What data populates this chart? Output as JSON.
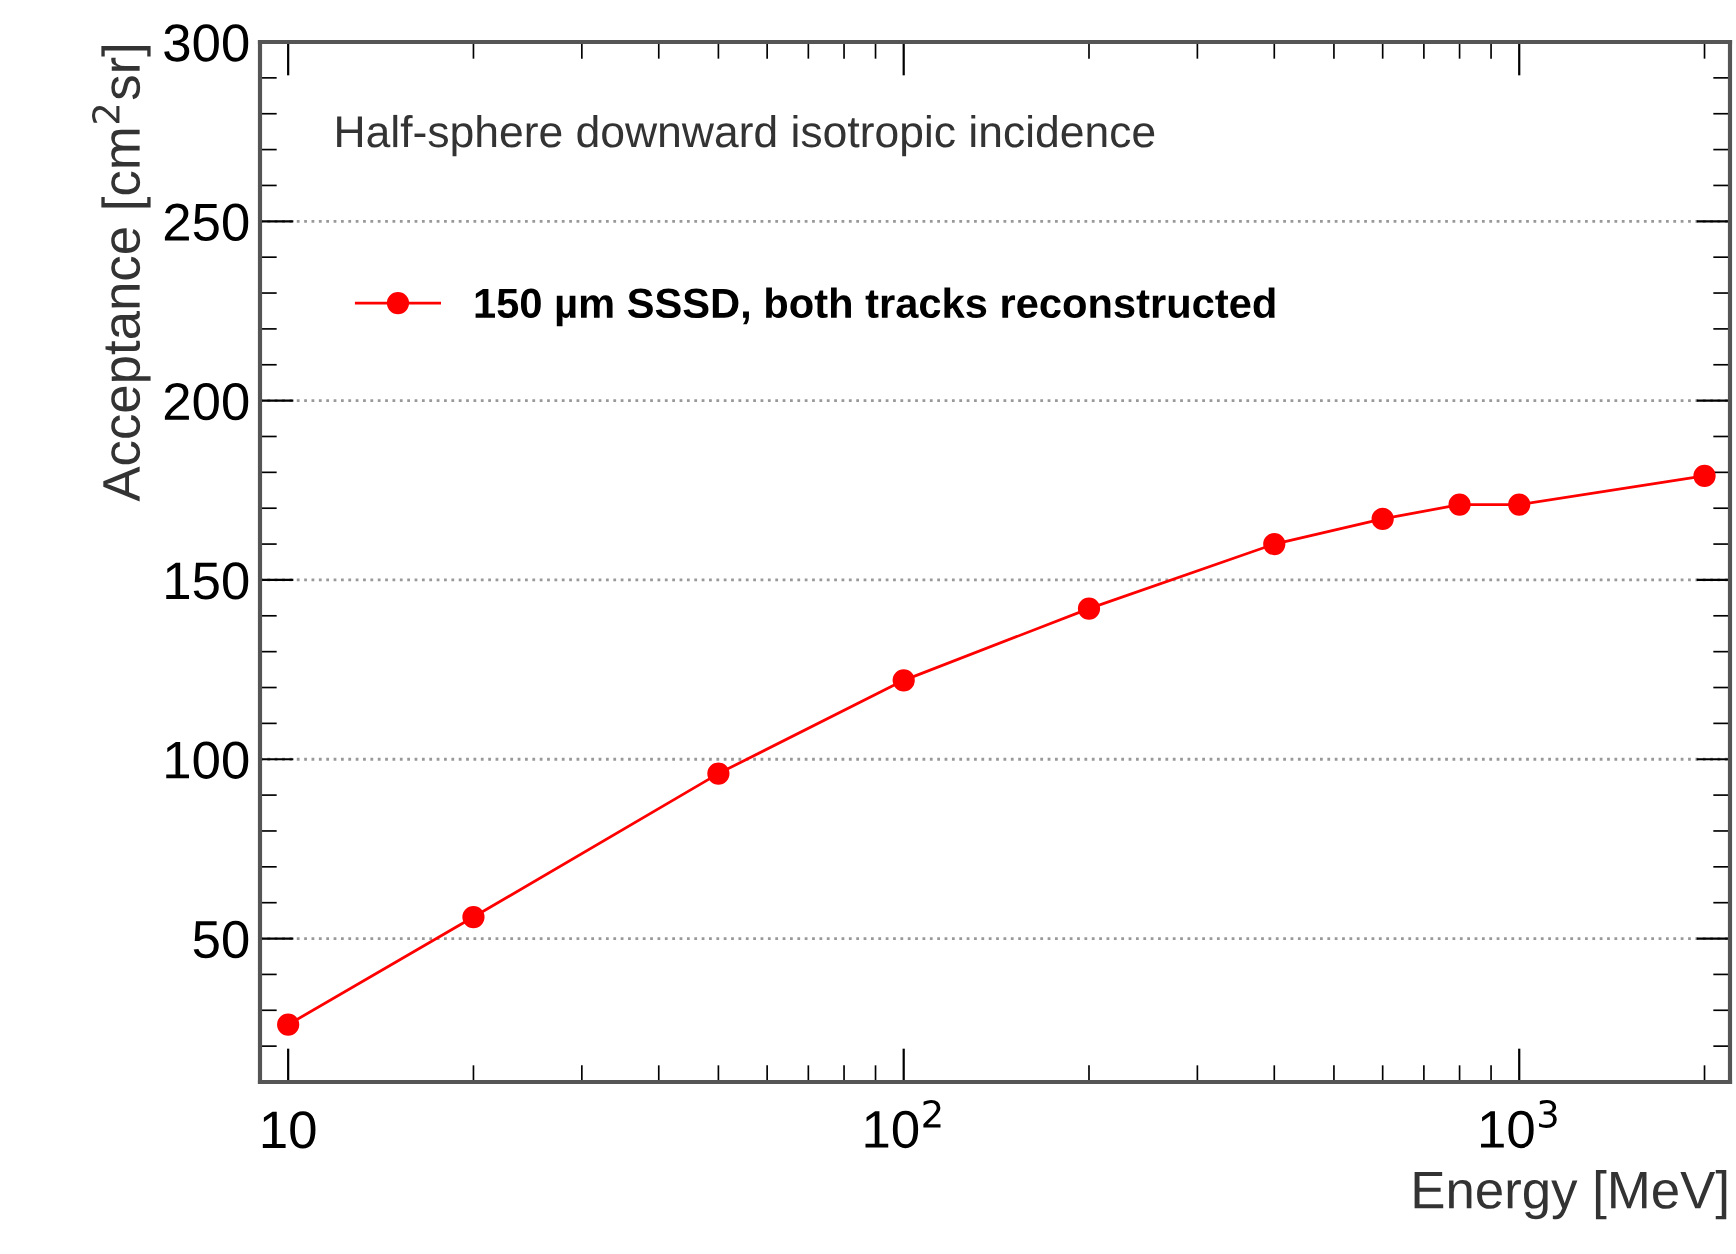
{
  "chart_data": {
    "type": "line",
    "xlabel": "Energy [MeV]",
    "ylabel": "Acceptance [cm$^{2}$sr]",
    "annotations": [
      "Half-sphere downward isotropic incidence"
    ],
    "x": [
      10,
      20,
      50,
      100,
      200,
      400,
      600,
      800,
      1000,
      2000
    ],
    "series": [
      {
        "name": "150 µm SSSD, both tracks reconstructed",
        "color": "#ff0000",
        "values": [
          26,
          56,
          96,
          122,
          142,
          160,
          167,
          171,
          171,
          179
        ]
      }
    ],
    "log": "x",
    "xlim": [
      9,
      2200
    ],
    "ylim": [
      10,
      300
    ],
    "xticks": [
      10,
      {
        "value": 100,
        "label": "10$^{2}$"
      },
      {
        "value": 1000,
        "label": "10$^{3}$"
      }
    ],
    "yticks": [
      50,
      100,
      150,
      200,
      250,
      300
    ],
    "grid": "y",
    "legend": "top left",
    "marker": "circle",
    "line_style": "solid"
  }
}
